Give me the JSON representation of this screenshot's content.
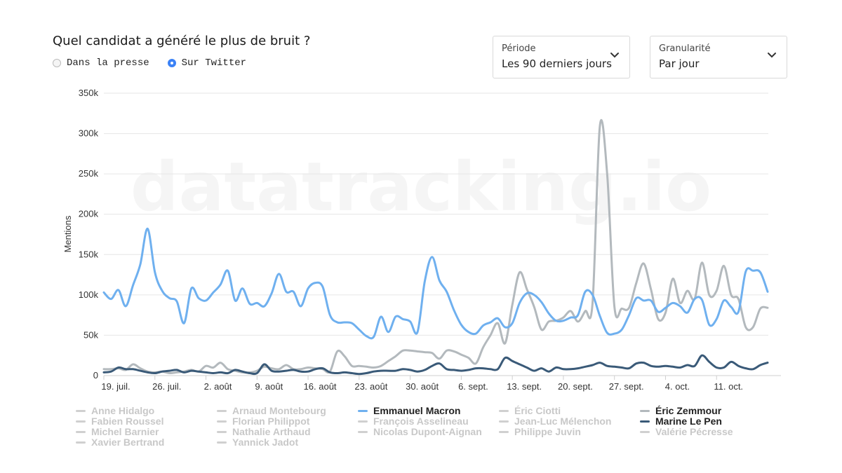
{
  "header": {
    "title": "Quel candidat a généré le plus de bruit ?",
    "radios": [
      {
        "label": "Dans la presse",
        "selected": false
      },
      {
        "label": "Sur Twitter",
        "selected": true
      }
    ]
  },
  "selects": {
    "periode": {
      "label": "Période",
      "value": "Les 90 derniers jours"
    },
    "granularite": {
      "label": "Granularité",
      "value": "Par jour"
    }
  },
  "watermark": "datatracking.io",
  "colors": {
    "macron": "#6fb0ef",
    "zemmour": "#b3b9bd",
    "lepen": "#3a5a78",
    "inactive": "#d0d0d0",
    "grid": "#e6e6e6"
  },
  "chart_data": {
    "type": "line",
    "ylabel": "Mentions",
    "ylim": [
      0,
      350000
    ],
    "yticks": [
      "0",
      "50k",
      "100k",
      "150k",
      "200k",
      "250k",
      "300k",
      "350k"
    ],
    "x_start": "19. juil.",
    "xticks": [
      "19. juil.",
      "26. juil.",
      "2. août",
      "9. août",
      "16. août",
      "23. août",
      "30. août",
      "6. sept.",
      "13. sept.",
      "20. sept.",
      "27. sept.",
      "4. oct.",
      "11. oct."
    ],
    "grid": true,
    "legend_position": "bottom",
    "series": [
      {
        "name": "Emmanuel Macron",
        "color": "#6fb0ef",
        "values": [
          103000,
          95000,
          106000,
          86000,
          112000,
          138000,
          182000,
          128000,
          105000,
          96000,
          92000,
          65000,
          108000,
          96000,
          93000,
          103000,
          113000,
          130000,
          93000,
          108000,
          89000,
          90000,
          86000,
          102000,
          126000,
          104000,
          104000,
          86000,
          108000,
          115000,
          110000,
          75000,
          66000,
          66000,
          65000,
          57000,
          49000,
          48000,
          73000,
          54000,
          73000,
          70000,
          67000,
          54000,
          117000,
          147000,
          118000,
          104000,
          81000,
          63000,
          54000,
          52000,
          62000,
          66000,
          71000,
          60000,
          65000,
          90000,
          102000,
          100000,
          91000,
          77000,
          68000,
          68000,
          72000,
          75000,
          104000,
          100000,
          74000,
          53000,
          52000,
          57000,
          75000,
          96000,
          93000,
          93000,
          79000,
          84000,
          90000,
          86000,
          78000,
          95000,
          94000,
          63000,
          70000,
          93000,
          85000,
          79000,
          129000,
          130000,
          128000,
          104000
        ]
      },
      {
        "name": "Éric Zemmour",
        "color": "#b3b9bd",
        "values": [
          8000,
          8000,
          9000,
          7000,
          14000,
          9000,
          5000,
          4000,
          5000,
          3000,
          4000,
          5000,
          7000,
          5000,
          12000,
          10000,
          16000,
          8000,
          6000,
          4000,
          4000,
          6000,
          11000,
          9000,
          8000,
          13000,
          8000,
          8000,
          10000,
          9000,
          8000,
          5000,
          30000,
          24000,
          12000,
          12000,
          11000,
          10000,
          12000,
          18000,
          24000,
          31000,
          31000,
          30000,
          29000,
          28000,
          21000,
          31000,
          30000,
          26000,
          22000,
          15000,
          35000,
          50000,
          65000,
          40000,
          88000,
          128000,
          107000,
          85000,
          57000,
          67000,
          68000,
          72000,
          80000,
          67000,
          80000,
          90000,
          309000,
          250000,
          85000,
          83000,
          84000,
          115000,
          139000,
          107000,
          70000,
          78000,
          120000,
          90000,
          105000,
          95000,
          140000,
          100000,
          105000,
          136000,
          100000,
          95000,
          60000,
          60000,
          83000,
          84000
        ]
      },
      {
        "name": "Marine Le Pen",
        "color": "#3a5a78",
        "values": [
          4000,
          5000,
          10000,
          8000,
          8000,
          6000,
          4000,
          3000,
          5000,
          6000,
          7000,
          4000,
          6000,
          5000,
          4000,
          3000,
          4000,
          3000,
          7000,
          5000,
          3000,
          3000,
          14000,
          6000,
          5000,
          6000,
          7000,
          5000,
          5000,
          8000,
          9000,
          4000,
          3000,
          4000,
          3000,
          2000,
          3000,
          5000,
          6000,
          6000,
          6000,
          8000,
          7000,
          5000,
          7000,
          12000,
          15000,
          8000,
          7000,
          6000,
          7000,
          9000,
          9000,
          8000,
          8000,
          22000,
          18000,
          14000,
          10000,
          6000,
          9000,
          5000,
          10000,
          8000,
          8000,
          9000,
          11000,
          13000,
          16000,
          12000,
          11000,
          10000,
          9000,
          15000,
          16000,
          12000,
          11000,
          12000,
          11000,
          10000,
          13000,
          12000,
          25000,
          17000,
          10000,
          10000,
          17000,
          12000,
          9000,
          8000,
          13000,
          16000
        ]
      }
    ],
    "legend": [
      {
        "name": "Anne Hidalgo",
        "active": false
      },
      {
        "name": "Arnaud Montebourg",
        "active": false
      },
      {
        "name": "Emmanuel Macron",
        "active": true,
        "color": "#6fb0ef"
      },
      {
        "name": "Éric Ciotti",
        "active": false
      },
      {
        "name": "Éric Zemmour",
        "active": true,
        "color": "#b3b9bd"
      },
      {
        "name": "Fabien Roussel",
        "active": false
      },
      {
        "name": "Florian Philippot",
        "active": false
      },
      {
        "name": "François Asselineau",
        "active": false
      },
      {
        "name": "Jean-Luc Mélenchon",
        "active": false
      },
      {
        "name": "Marine Le Pen",
        "active": true,
        "color": "#3a5a78"
      },
      {
        "name": "Michel Barnier",
        "active": false
      },
      {
        "name": "Nathalie Arthaud",
        "active": false
      },
      {
        "name": "Nicolas Dupont-Aignan",
        "active": false
      },
      {
        "name": "Philippe Juvin",
        "active": false
      },
      {
        "name": "Valérie Pécresse",
        "active": false
      },
      {
        "name": "Xavier Bertrand",
        "active": false
      },
      {
        "name": "Yannick Jadot",
        "active": false
      }
    ]
  }
}
